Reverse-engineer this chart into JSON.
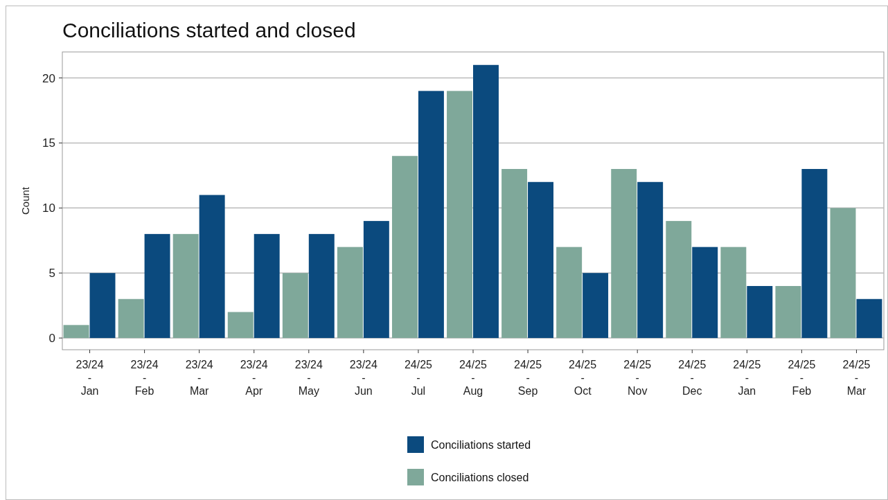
{
  "chart_data": {
    "type": "bar",
    "title": "Conciliations started and closed",
    "ylabel": "Count",
    "categories": [
      "23/24\n-\nJan",
      "23/24\n-\nFeb",
      "23/24\n-\nMar",
      "23/24\n-\nApr",
      "23/24\n-\nMay",
      "23/24\n-\nJun",
      "24/25\n-\nJul",
      "24/25\n-\nAug",
      "24/25\n-\nSep",
      "24/25\n-\nOct",
      "24/25\n-\nNov",
      "24/25\n-\nDec",
      "24/25\n-\nJan",
      "24/25\n-\nFeb",
      "24/25\n-\nMar"
    ],
    "series": [
      {
        "name": "Conciliations closed",
        "color": "#7fa89a",
        "values": [
          1,
          3,
          8,
          2,
          5,
          7,
          14,
          19,
          13,
          7,
          13,
          9,
          7,
          4,
          10
        ]
      },
      {
        "name": "Conciliations started",
        "color": "#0b4a7e",
        "values": [
          5,
          8,
          11,
          8,
          8,
          9,
          19,
          21,
          12,
          5,
          12,
          7,
          4,
          13,
          3
        ]
      }
    ],
    "ylim": [
      -0.9,
      22
    ],
    "yticks": [
      0,
      5,
      10,
      15,
      20
    ],
    "grid": "y",
    "legend": "bottom"
  }
}
